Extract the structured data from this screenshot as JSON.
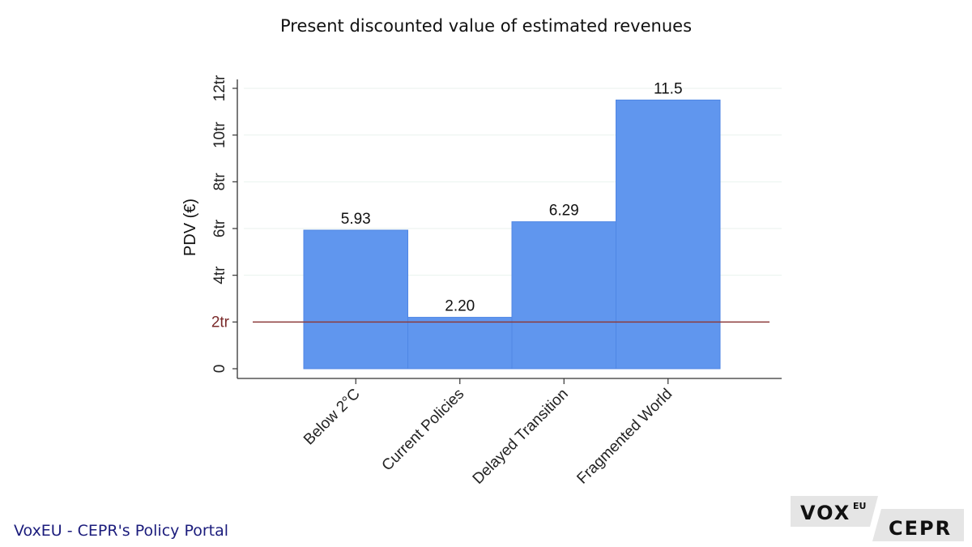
{
  "title": "Present discounted value of estimated revenues",
  "footer": "VoxEU - CEPR's Policy Portal",
  "logo": {
    "left_text": "VOX",
    "superscript": "EU",
    "right_text": "CEPR"
  },
  "colors": {
    "bar": "#6096ee",
    "bar_edge": "#4f86e4",
    "reference_line": "#8c3a3a",
    "reference_label": "#7a2a2a",
    "gridline": "#eaf2ee",
    "axis": "#333333",
    "footer_text": "#1b1c7c",
    "logo_bg": "#e5e5e5"
  },
  "chart_data": {
    "type": "bar",
    "title": "Present discounted value of estimated revenues",
    "ylabel": "PDV (€)",
    "xlabel": "",
    "categories": [
      "Below 2°C",
      "Current Policies",
      "Delayed Transition",
      "Fragmented World"
    ],
    "values": [
      5.93,
      2.2,
      6.29,
      11.5
    ],
    "value_labels": [
      "5.93",
      "2.20",
      "6.29",
      "11.5"
    ],
    "ylim": [
      0,
      12
    ],
    "y_ticks": [
      {
        "value": 0,
        "label": "0"
      },
      {
        "value": 4,
        "label": "4tr"
      },
      {
        "value": 6,
        "label": "6tr"
      },
      {
        "value": 8,
        "label": "8tr"
      },
      {
        "value": 10,
        "label": "10tr"
      },
      {
        "value": 12,
        "label": "12tr"
      }
    ],
    "reference_line": {
      "value": 2,
      "label": "2tr"
    },
    "grid": true,
    "bar_gap": 0,
    "legend": "none"
  }
}
